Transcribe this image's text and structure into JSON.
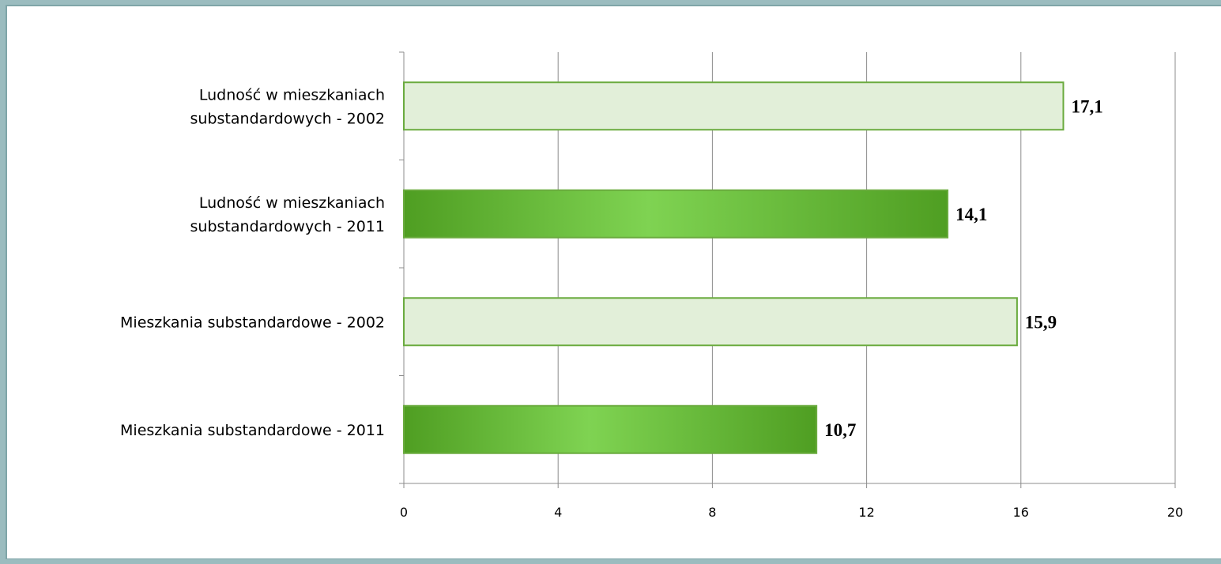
{
  "chart_data": {
    "type": "bar",
    "orientation": "horizontal",
    "title": "",
    "xlabel": "",
    "ylabel": "",
    "xlim": [
      0,
      20
    ],
    "ticks": [
      0,
      4,
      8,
      12,
      16,
      20
    ],
    "tick_labels": [
      "0",
      "4",
      "8",
      "12",
      "16",
      "20"
    ],
    "grid": "vertical",
    "categories": [
      {
        "lines": [
          "Ludność w mieszkaniach",
          "substandardowych - 2002"
        ],
        "value": 17.1,
        "value_label": "17,1",
        "style": "light"
      },
      {
        "lines": [
          "Ludność w mieszkaniach",
          "substandardowych - 2011"
        ],
        "value": 14.1,
        "value_label": "14,1",
        "style": "dark"
      },
      {
        "lines": [
          "Mieszkania substandardowe - 2002"
        ],
        "value": 15.9,
        "value_label": "15,9",
        "style": "light"
      },
      {
        "lines": [
          "Mieszkania substandardowe - 2011"
        ],
        "value": 10.7,
        "value_label": "10,7",
        "style": "dark"
      }
    ],
    "colors": {
      "light_fill": "#e2efd9",
      "bar_border": "#6aab3e",
      "dark_edge": "#4f9e22",
      "dark_center": "#7fd352",
      "grid": "#8c8c8c",
      "frame": "#9bbcbf"
    }
  }
}
